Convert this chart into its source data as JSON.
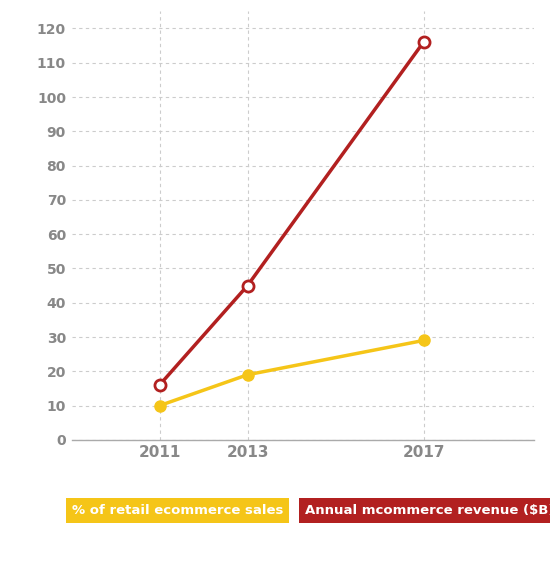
{
  "years": [
    2011,
    2013,
    2017
  ],
  "yellow_series": [
    10,
    19,
    29
  ],
  "red_series": [
    16,
    45,
    116
  ],
  "yellow_color": "#F5C518",
  "red_color": "#B22020",
  "marker_size": 8,
  "ylim": [
    0,
    125
  ],
  "yticks": [
    0,
    10,
    20,
    30,
    40,
    50,
    60,
    70,
    80,
    90,
    100,
    110,
    120
  ],
  "xticks": [
    2011,
    2013,
    2017
  ],
  "grid_color": "#cccccc",
  "background_color": "#ffffff",
  "legend_yellow_label": "% of retail ecommerce sales",
  "legend_red_label": "Annual mcommerce revenue ($B)",
  "legend_yellow_bg": "#F5C518",
  "legend_red_bg": "#B22020",
  "legend_text_color": "#ffffff",
  "tick_color": "#888888",
  "spine_color": "#aaaaaa"
}
